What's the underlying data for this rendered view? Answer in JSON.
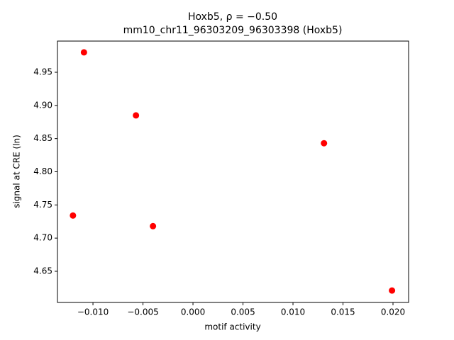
{
  "chart_data": {
    "type": "scatter",
    "title": "Hoxb5, ρ = −0.50",
    "subtitle": "mm10_chr11_96303209_96303398 (Hoxb5)",
    "x_label": "motif activity",
    "y_label": "signal at CRE (ln)",
    "color": "#ff0000",
    "x": [
      -0.012,
      -0.0109,
      -0.0057,
      -0.004,
      0.0131,
      0.0199
    ],
    "values": [
      4.734,
      4.98,
      4.885,
      4.718,
      4.843,
      4.621
    ],
    "xlim": [
      -0.01355,
      0.02156
    ],
    "ylim": [
      4.603,
      4.997
    ],
    "xticks": [
      {
        "value": -0.01,
        "label": "−0.010"
      },
      {
        "value": -0.005,
        "label": "−0.005"
      },
      {
        "value": 0,
        "label": "0.000"
      },
      {
        "value": 0.005,
        "label": "0.005"
      },
      {
        "value": 0.01,
        "label": "0.010"
      },
      {
        "value": 0.015,
        "label": "0.015"
      },
      {
        "value": 0.02,
        "label": "0.020"
      }
    ],
    "yticks": [
      4.65,
      {
        "value": 4.7,
        "label": "4.70"
      },
      4.75,
      {
        "value": 4.8,
        "label": "4.80"
      },
      4.85,
      {
        "value": 4.9,
        "label": "4.90"
      },
      4.95
    ],
    "grid": false
  }
}
